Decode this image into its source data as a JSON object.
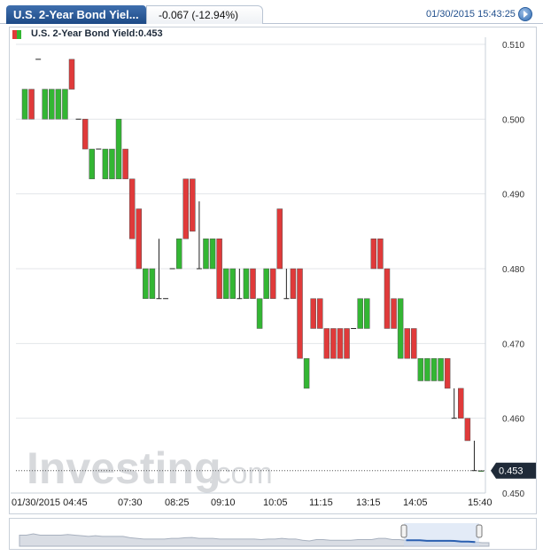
{
  "header": {
    "title_tab": "U.S. 2-Year Bond Yiel...",
    "change": "-0.067 (-12.94%)",
    "datetime": "01/30/2015 15:43:25"
  },
  "legend": {
    "text": "U.S. 2-Year Bond Yield:0.453"
  },
  "colors": {
    "up": "#33b633",
    "down": "#e03a3a",
    "grid": "#e3e6ea",
    "brand": "#1f4e8c"
  },
  "icons": {
    "refresh": "refresh-icon"
  },
  "watermark": {
    "main": "Investing",
    "suffix": ".com"
  },
  "chart_data": {
    "type": "candlestick",
    "title": "U.S. 2-Year Bond Yield",
    "ylim": [
      0.45,
      0.51
    ],
    "yticks": [
      "0.510",
      "0.500",
      "0.490",
      "0.480",
      "0.470",
      "0.460",
      "0.450"
    ],
    "xticks": [
      "01/30/2015 04:45",
      "07:30",
      "08:25",
      "09:10",
      "10:05",
      "11:15",
      "13:15",
      "14:05",
      "15:40"
    ],
    "last_value": "0.453",
    "grid": true,
    "candles": [
      [
        "up",
        0.501,
        0.5,
        0.504,
        0.504
      ],
      [
        "down",
        0.504,
        0.5,
        0.504,
        0.5
      ],
      [
        "flat",
        0.508,
        0.508,
        0.508,
        0.508
      ],
      [
        "up",
        0.5,
        0.5,
        0.504,
        0.504
      ],
      [
        "up",
        0.5,
        0.5,
        0.504,
        0.504
      ],
      [
        "up",
        0.5,
        0.5,
        0.504,
        0.504
      ],
      [
        "up",
        0.5,
        0.5,
        0.504,
        0.504
      ],
      [
        "down",
        0.506,
        0.504,
        0.508,
        0.504
      ],
      [
        "flat",
        0.5,
        0.5,
        0.5,
        0.5
      ],
      [
        "down",
        0.5,
        0.496,
        0.5,
        0.496
      ],
      [
        "up",
        0.496,
        0.492,
        0.496,
        0.492
      ],
      [
        "flat",
        0.496,
        0.496,
        0.496,
        0.496
      ],
      [
        "up",
        0.496,
        0.492,
        0.496,
        0.492
      ],
      [
        "up",
        0.496,
        0.492,
        0.496,
        0.492
      ],
      [
        "up",
        0.5,
        0.492,
        0.5,
        0.492
      ],
      [
        "down",
        0.496,
        0.492,
        0.496,
        0.492
      ],
      [
        "down",
        0.492,
        0.484,
        0.492,
        0.484
      ],
      [
        "down",
        0.488,
        0.48,
        0.488,
        0.484
      ],
      [
        "up",
        0.48,
        0.476,
        0.48,
        0.476
      ],
      [
        "up",
        0.48,
        0.476,
        0.48,
        0.476
      ],
      [
        "flat",
        0.484,
        0.476,
        0.484,
        0.48
      ],
      [
        "flat",
        0.476,
        0.476,
        0.476,
        0.476
      ],
      [
        "flat",
        0.48,
        0.48,
        0.48,
        0.48
      ],
      [
        "up",
        0.48,
        0.48,
        0.484,
        0.484
      ],
      [
        "down",
        0.492,
        0.484,
        0.492,
        0.488
      ],
      [
        "down",
        0.492,
        0.485,
        0.492,
        0.485
      ],
      [
        "flat",
        0.485,
        0.48,
        0.489,
        0.48
      ],
      [
        "up",
        0.48,
        0.48,
        0.484,
        0.484
      ],
      [
        "up",
        0.48,
        0.48,
        0.484,
        0.484
      ],
      [
        "down",
        0.484,
        0.476,
        0.484,
        0.48
      ],
      [
        "up",
        0.476,
        0.476,
        0.48,
        0.48
      ],
      [
        "up",
        0.476,
        0.476,
        0.48,
        0.48
      ],
      [
        "flat",
        0.476,
        0.476,
        0.48,
        0.476
      ],
      [
        "up",
        0.476,
        0.476,
        0.48,
        0.48
      ],
      [
        "down",
        0.48,
        0.476,
        0.48,
        0.476
      ],
      [
        "up",
        0.476,
        0.472,
        0.476,
        0.472
      ],
      [
        "up",
        0.476,
        0.476,
        0.48,
        0.48
      ],
      [
        "down",
        0.48,
        0.476,
        0.48,
        0.476
      ],
      [
        "down",
        0.484,
        0.48,
        0.488,
        0.48
      ],
      [
        "flat",
        0.48,
        0.476,
        0.48,
        0.48
      ],
      [
        "down",
        0.48,
        0.476,
        0.48,
        0.476
      ],
      [
        "down",
        0.48,
        0.468,
        0.48,
        0.468
      ],
      [
        "up",
        0.468,
        0.464,
        0.468,
        0.464
      ],
      [
        "down",
        0.476,
        0.472,
        0.476,
        0.472
      ],
      [
        "down",
        0.476,
        0.472,
        0.476,
        0.472
      ],
      [
        "down",
        0.472,
        0.468,
        0.472,
        0.468
      ],
      [
        "down",
        0.472,
        0.468,
        0.472,
        0.468
      ],
      [
        "down",
        0.472,
        0.468,
        0.472,
        0.468
      ],
      [
        "down",
        0.472,
        0.468,
        0.472,
        0.468
      ],
      [
        "flat",
        0.472,
        0.472,
        0.472,
        0.472
      ],
      [
        "up",
        0.476,
        0.472,
        0.476,
        0.472
      ],
      [
        "up",
        0.476,
        0.472,
        0.476,
        0.472
      ],
      [
        "down",
        0.484,
        0.48,
        0.484,
        0.48
      ],
      [
        "down",
        0.484,
        0.48,
        0.484,
        0.48
      ],
      [
        "down",
        0.48,
        0.472,
        0.48,
        0.472
      ],
      [
        "down",
        0.476,
        0.472,
        0.476,
        0.472
      ],
      [
        "up",
        0.476,
        0.468,
        0.476,
        0.468
      ],
      [
        "down",
        0.472,
        0.468,
        0.472,
        0.468
      ],
      [
        "down",
        0.472,
        0.468,
        0.472,
        0.468
      ],
      [
        "up",
        0.468,
        0.465,
        0.468,
        0.465
      ],
      [
        "up",
        0.468,
        0.465,
        0.468,
        0.465
      ],
      [
        "up",
        0.468,
        0.465,
        0.468,
        0.465
      ],
      [
        "up",
        0.468,
        0.465,
        0.468,
        0.465
      ],
      [
        "down",
        0.468,
        0.464,
        0.468,
        0.464
      ],
      [
        "flat",
        0.464,
        0.46,
        0.464,
        0.46
      ],
      [
        "down",
        0.464,
        0.46,
        0.464,
        0.46
      ],
      [
        "down",
        0.46,
        0.457,
        0.46,
        0.457
      ],
      [
        "flat",
        0.457,
        0.453,
        0.457,
        0.453
      ],
      [
        "up",
        0.453,
        0.453,
        0.453,
        0.453
      ]
    ]
  }
}
